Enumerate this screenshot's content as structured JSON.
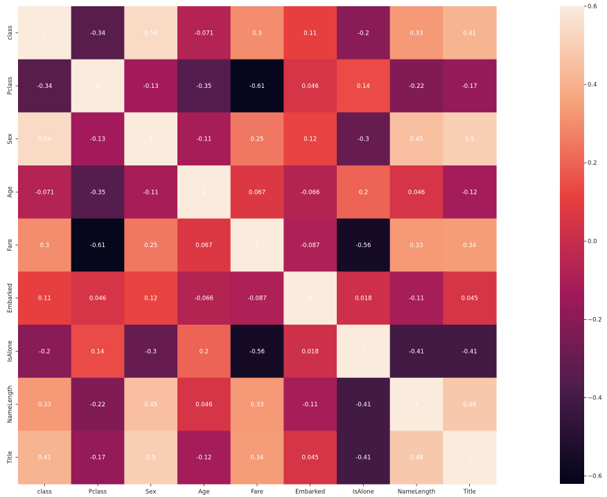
{
  "chart_data": {
    "type": "heatmap",
    "title": "",
    "xlabel": "",
    "ylabel": "",
    "x_labels": [
      "class",
      "Pclass",
      "Sex",
      "Age",
      "Fare",
      "Embarked",
      "IsAlone",
      "NameLength",
      "Title"
    ],
    "y_labels": [
      "class",
      "Pclass",
      "Sex",
      "Age",
      "Fare",
      "Embarked",
      "IsAlone",
      "NameLength",
      "Title"
    ],
    "values": [
      [
        1,
        -0.34,
        0.54,
        -0.071,
        0.3,
        0.11,
        -0.2,
        0.33,
        0.41
      ],
      [
        -0.34,
        1,
        -0.13,
        -0.35,
        -0.61,
        0.046,
        0.14,
        -0.22,
        -0.17
      ],
      [
        0.54,
        -0.13,
        1,
        -0.11,
        0.25,
        0.12,
        -0.3,
        0.45,
        0.5
      ],
      [
        -0.071,
        -0.35,
        -0.11,
        1,
        0.067,
        -0.066,
        0.2,
        0.046,
        -0.12
      ],
      [
        0.3,
        -0.61,
        0.25,
        0.067,
        1,
        -0.087,
        -0.56,
        0.33,
        0.34
      ],
      [
        0.11,
        0.046,
        0.12,
        -0.066,
        -0.087,
        1,
        0.018,
        -0.11,
        0.045
      ],
      [
        -0.2,
        0.14,
        -0.3,
        0.2,
        -0.56,
        0.018,
        1,
        -0.41,
        -0.41
      ],
      [
        0.33,
        -0.22,
        0.45,
        0.046,
        0.33,
        -0.11,
        -0.41,
        1,
        0.48
      ],
      [
        0.41,
        -0.17,
        0.5,
        -0.12,
        0.34,
        0.045,
        -0.41,
        0.48,
        1
      ]
    ],
    "annotations": [
      [
        "1",
        "-0.34",
        "0.54",
        "-0.071",
        "0.3",
        "0.11",
        "-0.2",
        "0.33",
        "0.41"
      ],
      [
        "-0.34",
        "1",
        "-0.13",
        "-0.35",
        "-0.61",
        "0.046",
        "0.14",
        "-0.22",
        "-0.17"
      ],
      [
        "0.54",
        "-0.13",
        "1",
        "-0.11",
        "0.25",
        "0.12",
        "-0.3",
        "0.45",
        "0.5"
      ],
      [
        "-0.071",
        "-0.35",
        "-0.11",
        "1",
        "0.067",
        "-0.066",
        "0.2",
        "0.046",
        "-0.12"
      ],
      [
        "0.3",
        "-0.61",
        "0.25",
        "0.067",
        "1",
        "-0.087",
        "-0.56",
        "0.33",
        "0.34"
      ],
      [
        "0.11",
        "0.046",
        "0.12",
        "-0.066",
        "-0.087",
        "1",
        "0.018",
        "-0.11",
        "0.045"
      ],
      [
        "-0.2",
        "0.14",
        "-0.3",
        "0.2",
        "-0.56",
        "0.018",
        "1",
        "-0.41",
        "-0.41"
      ],
      [
        "0.33",
        "-0.22",
        "0.45",
        "0.046",
        "0.33",
        "-0.11",
        "-0.41",
        "1",
        "0.48"
      ],
      [
        "0.41",
        "-0.17",
        "0.5",
        "-0.12",
        "0.34",
        "0.045",
        "-0.41",
        "0.48",
        "1"
      ]
    ],
    "colormap": "rocket",
    "colormap_stops": [
      "#03051a",
      "#4c1d4b",
      "#a11a5b",
      "#e83f3f",
      "#f6a47c",
      "#faebdd"
    ],
    "vmin": -0.62,
    "vmax": 0.6,
    "colorbar": {
      "ticks": [
        0.6,
        0.4,
        0.2,
        0.0,
        -0.2,
        -0.4,
        -0.6
      ],
      "tick_labels": [
        "0.6",
        "0.4",
        "0.2",
        "0.0",
        "−0.2",
        "−0.4",
        "−0.6"
      ],
      "position": "right"
    },
    "annotation_color": "#ffffff",
    "grid": false,
    "legend": "none"
  }
}
